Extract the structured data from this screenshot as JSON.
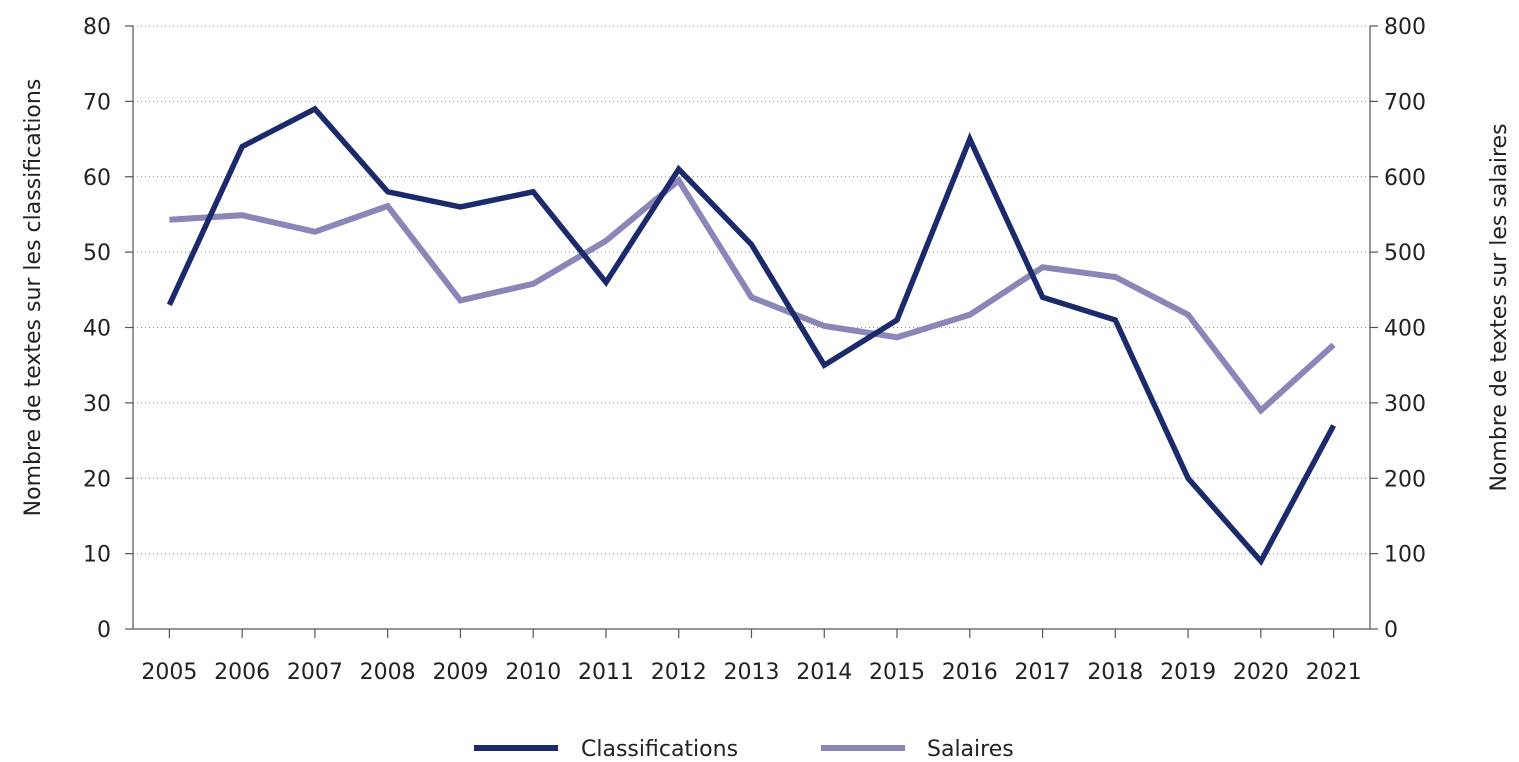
{
  "chart_data": {
    "type": "line",
    "title": "",
    "x": [
      "2005",
      "2006",
      "2007",
      "2008",
      "2009",
      "2010",
      "2011",
      "2012",
      "2013",
      "2014",
      "2015",
      "2016",
      "2017",
      "2018",
      "2019",
      "2020",
      "2021"
    ],
    "ylabel_left": "Nombre de textes sur les classifications",
    "ylabel_right": "Nombre de textes sur les salaires",
    "ylim_left": [
      0,
      80
    ],
    "ylim_right": [
      0,
      800
    ],
    "yticks_left": [
      "0",
      "10",
      "20",
      "30",
      "40",
      "50",
      "60",
      "70",
      "80"
    ],
    "yticks_right": [
      "0",
      "100",
      "200",
      "300",
      "400",
      "500",
      "600",
      "700",
      "800"
    ],
    "grid": true,
    "legend_position": "bottom",
    "series": [
      {
        "name": "Classifications",
        "axis": "left",
        "color": "#1b2a6b",
        "values": [
          43,
          64,
          69,
          58,
          56,
          58,
          46,
          61,
          51,
          35,
          41,
          65,
          44,
          41,
          20,
          9,
          27
        ]
      },
      {
        "name": "Salaires",
        "axis": "right",
        "color": "#8a87b8",
        "values": [
          543,
          549,
          527,
          561,
          436,
          458,
          515,
          595,
          440,
          402,
          387,
          417,
          480,
          467,
          417,
          290,
          377
        ]
      }
    ]
  }
}
